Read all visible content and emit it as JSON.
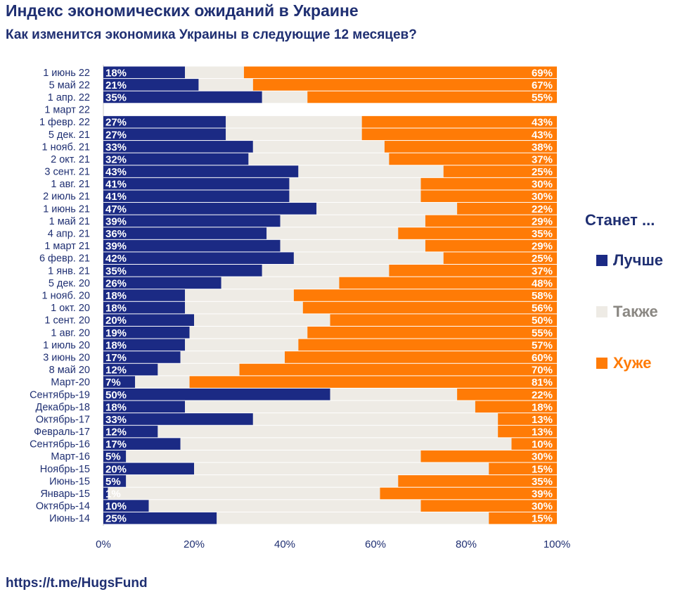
{
  "title": "Индекс экономических ожиданий в Украине",
  "subtitle": "Как изменится экономика Украины в следующие 12 месяцев?",
  "footer": "https://t.me/HugsFund",
  "legend": {
    "title": "Станет ...",
    "items": [
      {
        "label": "Лучше",
        "color": "#1b2a84"
      },
      {
        "label": "Также",
        "color": "#eeebe5"
      },
      {
        "label": "Хуже",
        "color": "#ff7b06"
      }
    ]
  },
  "chart_data": {
    "type": "bar",
    "orientation": "horizontal",
    "stacked": true,
    "title": "Индекс экономических ожиданий в Украине",
    "subtitle": "Как изменится экономика Украины в следующие 12 месяцев?",
    "xlim": [
      0,
      100
    ],
    "x_ticks": [
      "0%",
      "20%",
      "40%",
      "60%",
      "80%",
      "100%"
    ],
    "categories": [
      "1 июнь 22",
      "5 май 22",
      "1 апр. 22",
      "1 март 22",
      "1 февр. 22",
      "5 дек. 21",
      "1 нояб. 21",
      "2 окт. 21",
      "3 сент. 21",
      "1 авг. 21",
      "2 июль 21",
      "1 июнь 21",
      "1 май 21",
      "4 апр. 21",
      "1 март 21",
      "6 февр. 21",
      "1 янв. 21",
      "5 дек. 20",
      "1 нояб. 20",
      "1 окт. 20",
      "1 сент. 20",
      "1 авг. 20",
      "1 июль 20",
      "3 июнь 20",
      "8 май 20",
      "Март-20",
      "Сентябрь-19",
      "Декабрь-18",
      "Октябрь-17",
      "Февраль-17",
      "Сентябрь-16",
      "Март-16",
      "Ноябрь-15",
      "Июнь-15",
      "Январь-15",
      "Октябрь-14",
      "Июнь-14"
    ],
    "series": [
      {
        "name": "Лучше",
        "color": "#1b2a84",
        "values": [
          18,
          21,
          35,
          null,
          27,
          27,
          33,
          32,
          43,
          41,
          41,
          47,
          39,
          36,
          39,
          42,
          35,
          26,
          18,
          18,
          20,
          19,
          18,
          17,
          12,
          7,
          50,
          18,
          33,
          12,
          17,
          5,
          20,
          5,
          1,
          10,
          25
        ],
        "labels": [
          "18%",
          "21%",
          "35%",
          "",
          "27%",
          "27%",
          "33%",
          "32%",
          "43%",
          "41%",
          "41%",
          "47%",
          "39%",
          "36%",
          "39%",
          "42%",
          "35%",
          "26%",
          "18%",
          "18%",
          "20%",
          "19%",
          "18%",
          "17%",
          "12%",
          "7%",
          "50%",
          "18%",
          "33%",
          "12%",
          "17%",
          "5%",
          "20%",
          "5%",
          "1%",
          "10%",
          "25%"
        ]
      },
      {
        "name": "Также",
        "color": "#eeebe5",
        "values": [
          13,
          12,
          10,
          null,
          30,
          30,
          29,
          31,
          32,
          29,
          29,
          31,
          32,
          29,
          32,
          33,
          28,
          26,
          24,
          26,
          30,
          26,
          25,
          23,
          18,
          12,
          28,
          64,
          54,
          75,
          73,
          65,
          65,
          60,
          60,
          60,
          60
        ]
      },
      {
        "name": "Хуже",
        "color": "#ff7b06",
        "values": [
          69,
          67,
          55,
          null,
          43,
          43,
          38,
          37,
          25,
          30,
          30,
          22,
          29,
          35,
          29,
          25,
          37,
          48,
          58,
          56,
          50,
          55,
          57,
          60,
          70,
          81,
          22,
          18,
          13,
          13,
          10,
          30,
          15,
          35,
          39,
          30,
          15
        ],
        "labels": [
          "69%",
          "67%",
          "55%",
          "",
          "43%",
          "43%",
          "38%",
          "37%",
          "25%",
          "30%",
          "30%",
          "22%",
          "29%",
          "35%",
          "29%",
          "25%",
          "37%",
          "48%",
          "58%",
          "56%",
          "50%",
          "55%",
          "57%",
          "60%",
          "70%",
          "81%",
          "22%",
          "18%",
          "13%",
          "13%",
          "10%",
          "30%",
          "15%",
          "35%",
          "39%",
          "30%",
          "15%"
        ]
      }
    ]
  }
}
